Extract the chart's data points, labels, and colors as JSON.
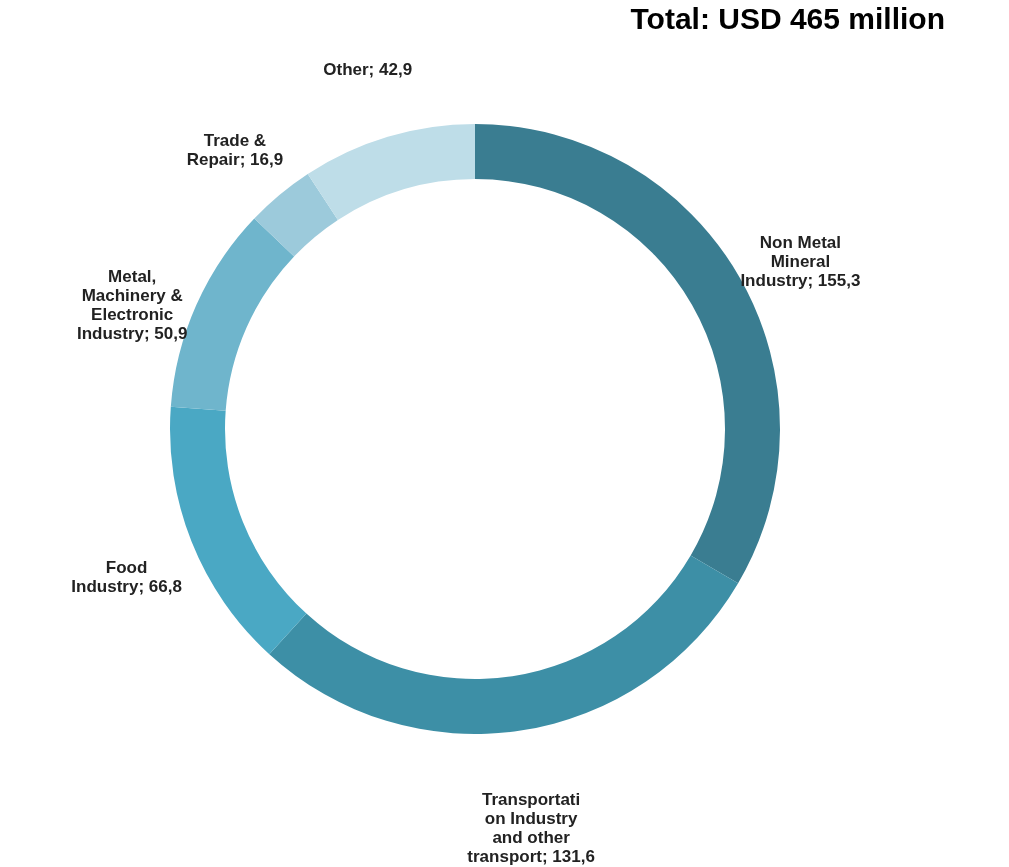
{
  "chart_data": {
    "type": "donut",
    "title": "Total: USD 465 million",
    "categories": [
      "Non Metal Mineral Industry",
      "Transportation Industry and other transport",
      "Food Industry",
      "Metal, Machinery & Electronic Industry",
      "Trade & Repair",
      "Other"
    ],
    "values": [
      155.3,
      131.6,
      66.8,
      50.9,
      16.9,
      42.9
    ],
    "value_labels": [
      "155,3",
      "131,6",
      "66,8",
      "50,9",
      "16,9",
      "42,9"
    ],
    "colors": [
      "#3a7d91",
      "#3d8fa6",
      "#4aa8c4",
      "#6fb5cc",
      "#9ccadb",
      "#bedde8"
    ],
    "legend": false
  }
}
